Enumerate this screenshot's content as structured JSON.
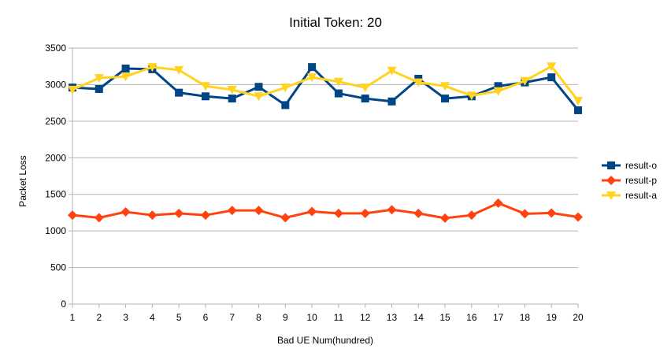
{
  "chart_data": {
    "type": "line",
    "title": "Initial Token: 20",
    "xlabel": "Bad UE Num(hundred)",
    "ylabel": "Packet Loss",
    "categories": [
      "1",
      "2",
      "3",
      "4",
      "5",
      "6",
      "7",
      "8",
      "9",
      "10",
      "11",
      "12",
      "13",
      "14",
      "15",
      "16",
      "17",
      "18",
      "19",
      "20"
    ],
    "ylim": [
      0,
      3500
    ],
    "yticks": [
      "0",
      "500",
      "1000",
      "1500",
      "2000",
      "2500",
      "3000",
      "3500"
    ],
    "grid": "horizontal",
    "legend_position": "right",
    "series": [
      {
        "name": "result-o",
        "color": "#004586",
        "marker": "square",
        "values": [
          2960,
          2940,
          3220,
          3210,
          2890,
          2840,
          2810,
          2970,
          2720,
          3240,
          2880,
          2810,
          2770,
          3080,
          2810,
          2840,
          2980,
          3030,
          3100,
          2650
        ]
      },
      {
        "name": "result-p",
        "color": "#ff420e",
        "marker": "diamond",
        "values": [
          1215,
          1180,
          1260,
          1215,
          1240,
          1215,
          1280,
          1280,
          1180,
          1265,
          1240,
          1240,
          1290,
          1240,
          1175,
          1215,
          1380,
          1235,
          1245,
          1190
        ]
      },
      {
        "name": "result-a",
        "color": "#ffd320",
        "marker": "triangle-down",
        "values": [
          2930,
          3090,
          3110,
          3240,
          3200,
          2980,
          2930,
          2840,
          2960,
          3100,
          3040,
          2960,
          3190,
          3030,
          2980,
          2850,
          2910,
          3050,
          3250,
          2780
        ]
      }
    ]
  }
}
